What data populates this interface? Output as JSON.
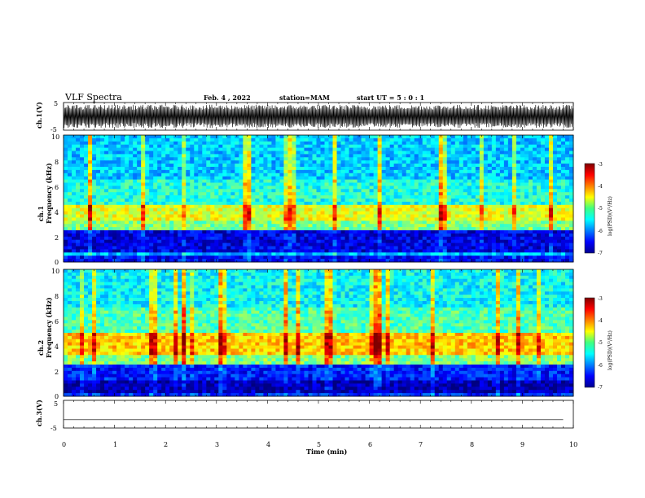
{
  "header": {
    "title": "VLF Spectra",
    "date": "Feb. 4 , 2022",
    "station": "station=MAM",
    "start_ut": "start UT =  5 : 0 : 1"
  },
  "chart_data": [
    {
      "type": "line",
      "panel": "ch1-waveform",
      "ylabel": "ch.1(V)",
      "ylim": [
        -5,
        5
      ],
      "yticks": [
        "5",
        "-5"
      ],
      "xlim": [
        0,
        10
      ],
      "note": "dense oscillating waveform spanning approx -4 to 4 V"
    },
    {
      "type": "heatmap",
      "panel": "ch1-spectrogram",
      "ylabel": "ch.1\nFrequency (kHz)",
      "ylim": [
        0,
        10
      ],
      "yticks": [
        "0",
        "2",
        "4",
        "6",
        "8",
        "10"
      ],
      "xlim": [
        0,
        10
      ],
      "colorbar": {
        "label": "log(PSD)(V²/Hz)",
        "range": [
          -7,
          -3
        ],
        "ticks": [
          "-3",
          "-4",
          "-5",
          "-6",
          "-7"
        ]
      },
      "bands_kHz": [
        {
          "from": 0,
          "to": 0.4,
          "level": -6.5
        },
        {
          "from": 0.4,
          "to": 0.7,
          "level": -5.8
        },
        {
          "from": 0.7,
          "to": 2.4,
          "level": -6.6
        },
        {
          "from": 2.4,
          "to": 3.2,
          "level": -5.0
        },
        {
          "from": 3.2,
          "to": 4.6,
          "level": -4.6
        },
        {
          "from": 4.6,
          "to": 6.5,
          "level": -5.4
        },
        {
          "from": 6.5,
          "to": 10,
          "level": -5.7
        }
      ]
    },
    {
      "type": "heatmap",
      "panel": "ch2-spectrogram",
      "ylabel": "ch.2\nFrequency (kHz)",
      "ylim": [
        0,
        10
      ],
      "yticks": [
        "0",
        "2",
        "4",
        "6",
        "8",
        "10"
      ],
      "xlim": [
        0,
        10
      ],
      "colorbar": {
        "label": "log(PSD)(V²/Hz)",
        "range": [
          -7,
          -3
        ],
        "ticks": [
          "-3",
          "-4",
          "-5",
          "-6",
          "-7"
        ]
      },
      "bands_kHz": [
        {
          "from": 0,
          "to": 0.3,
          "level": -6.3
        },
        {
          "from": 0.3,
          "to": 1.2,
          "level": -6.8
        },
        {
          "from": 1.2,
          "to": 2.5,
          "level": -6.4
        },
        {
          "from": 2.5,
          "to": 3.2,
          "level": -5.0
        },
        {
          "from": 3.2,
          "to": 5.0,
          "level": -4.3
        },
        {
          "from": 5.0,
          "to": 7.0,
          "level": -5.2
        },
        {
          "from": 7.0,
          "to": 10,
          "level": -5.5
        }
      ]
    },
    {
      "type": "line",
      "panel": "ch3-waveform",
      "ylabel": "ch.3(V)",
      "ylim": [
        -5,
        5
      ],
      "yticks": [
        "5",
        "-5"
      ],
      "xlim": [
        0,
        10
      ],
      "x": [
        0,
        9.8
      ],
      "y": [
        -2,
        -2
      ]
    }
  ],
  "xaxis": {
    "label": "Time  (min)",
    "ticks": [
      "0",
      "1",
      "2",
      "3",
      "4",
      "5",
      "6",
      "7",
      "8",
      "9",
      "10"
    ]
  },
  "colors": {
    "frame": "#000000",
    "background": "#ffffff"
  }
}
